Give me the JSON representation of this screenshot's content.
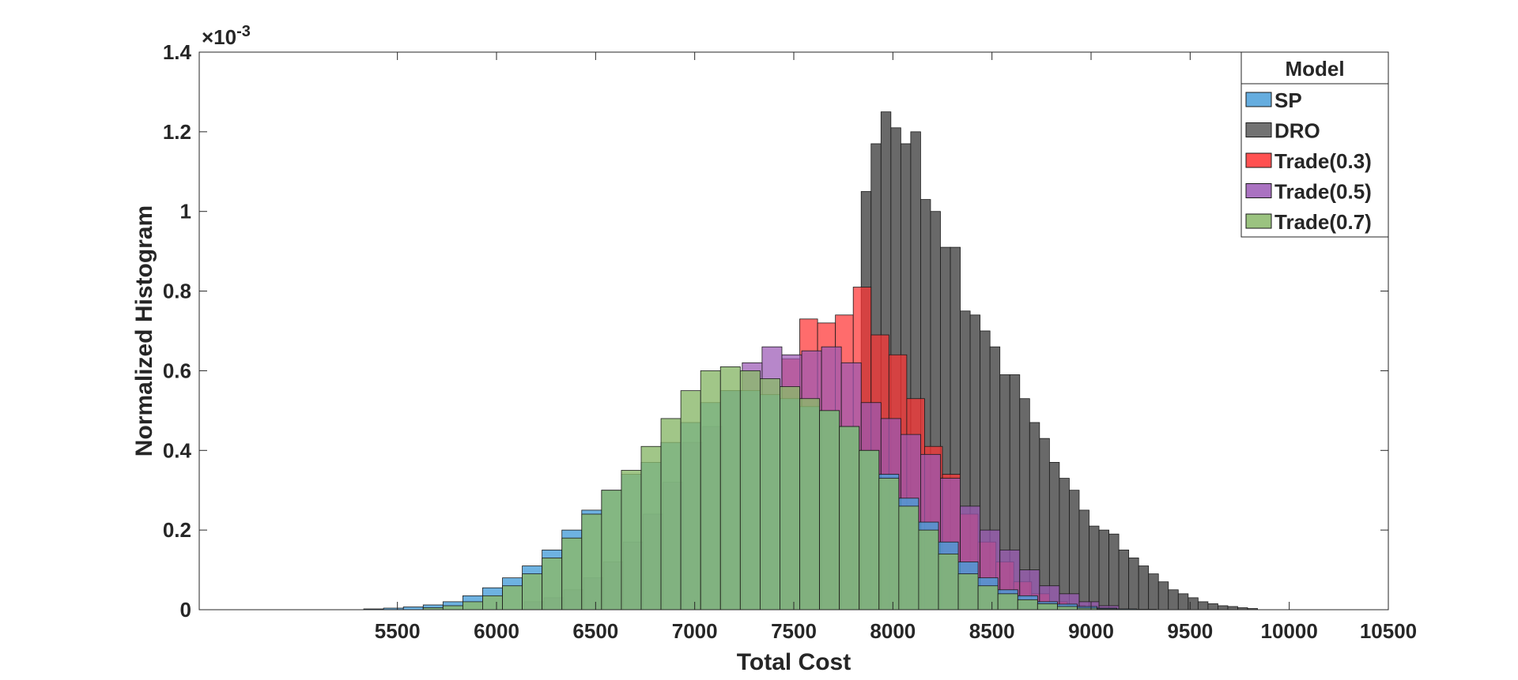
{
  "chart_data": {
    "type": "bar",
    "subtype": "overlaid-histogram",
    "title": "",
    "xlabel": "Total Cost",
    "ylabel": "Normalized Histogram",
    "y_exponent_label": "×10",
    "y_exponent_power": "-3",
    "xlim": [
      4500,
      10500
    ],
    "ylim": [
      0,
      1.4
    ],
    "x_ticks": [
      5500,
      6000,
      6500,
      7000,
      7500,
      8000,
      8500,
      9000,
      9500,
      10000,
      10500
    ],
    "x_tick_labels": [
      "5500",
      "6000",
      "6500",
      "7000",
      "7500",
      "8000",
      "8500",
      "9000",
      "9500",
      "10000",
      "10500"
    ],
    "y_ticks": [
      0,
      0.2,
      0.4,
      0.6,
      0.8,
      1,
      1.2,
      1.4
    ],
    "y_tick_labels": [
      "0",
      "0.2",
      "0.4",
      "0.6",
      "0.8",
      "1",
      "1.2",
      "1.4"
    ],
    "grid": false,
    "legend_title": "Model",
    "legend_position": "top-right",
    "series": [
      {
        "name": "DRO",
        "color": "#595959",
        "opacity": 0.9,
        "bin_start": 7840,
        "bin_width": 50,
        "values": [
          1.05,
          1.17,
          1.25,
          1.21,
          1.17,
          1.2,
          1.03,
          1.0,
          0.91,
          0.91,
          0.75,
          0.74,
          0.7,
          0.66,
          0.59,
          0.59,
          0.53,
          0.47,
          0.43,
          0.37,
          0.33,
          0.3,
          0.25,
          0.21,
          0.2,
          0.19,
          0.15,
          0.13,
          0.11,
          0.09,
          0.07,
          0.05,
          0.04,
          0.03,
          0.02,
          0.015,
          0.01,
          0.008,
          0.005,
          0.003
        ]
      },
      {
        "name": "Trade(0.3)",
        "color": "#ff3333",
        "opacity": 0.72,
        "bin_start": 7440,
        "bin_width": 90,
        "values": [
          0.63,
          0.73,
          0.72,
          0.74,
          0.81,
          0.69,
          0.64,
          0.53,
          0.41,
          0.34,
          0.24,
          0.17,
          0.12,
          0.07,
          0.04,
          0.02,
          0.01
        ]
      },
      {
        "name": "Trade(0.5)",
        "color": "#9b59b6",
        "opacity": 0.72,
        "bin_start": 6140,
        "bin_width": 100,
        "values": [
          0.02,
          0.03,
          0.05,
          0.08,
          0.12,
          0.17,
          0.24,
          0.32,
          0.42,
          0.46,
          0.55,
          0.62,
          0.66,
          0.64,
          0.65,
          0.66,
          0.62,
          0.52,
          0.48,
          0.44,
          0.39,
          0.33,
          0.26,
          0.2,
          0.15,
          0.1,
          0.06,
          0.04,
          0.02,
          0.01
        ]
      },
      {
        "name": "SP",
        "color": "#4a9fd9",
        "opacity": 0.8,
        "bin_start": 5330,
        "bin_width": 100,
        "values": [
          0.002,
          0.004,
          0.007,
          0.012,
          0.02,
          0.035,
          0.055,
          0.08,
          0.11,
          0.15,
          0.2,
          0.25,
          0.3,
          0.34,
          0.37,
          0.42,
          0.47,
          0.52,
          0.55,
          0.55,
          0.54,
          0.53,
          0.51,
          0.5,
          0.46,
          0.4,
          0.34,
          0.28,
          0.22,
          0.17,
          0.12,
          0.08,
          0.05,
          0.035,
          0.02,
          0.014,
          0.008,
          0.004,
          0.002,
          0.001
        ]
      },
      {
        "name": "Trade(0.7)",
        "color": "#8ab86a",
        "opacity": 0.8,
        "bin_start": 5630,
        "bin_width": 100,
        "values": [
          0.005,
          0.01,
          0.02,
          0.035,
          0.06,
          0.09,
          0.13,
          0.18,
          0.24,
          0.3,
          0.35,
          0.41,
          0.48,
          0.55,
          0.6,
          0.61,
          0.6,
          0.58,
          0.56,
          0.53,
          0.5,
          0.46,
          0.4,
          0.33,
          0.26,
          0.2,
          0.14,
          0.09,
          0.06,
          0.04,
          0.025,
          0.015,
          0.008,
          0.004,
          0.002
        ]
      }
    ],
    "legend": [
      {
        "name": "SP",
        "color": "#4a9fd9"
      },
      {
        "name": "DRO",
        "color": "#595959"
      },
      {
        "name": "Trade(0.3)",
        "color": "#ff3333"
      },
      {
        "name": "Trade(0.5)",
        "color": "#9b59b6"
      },
      {
        "name": "Trade(0.7)",
        "color": "#8ab86a"
      }
    ]
  }
}
